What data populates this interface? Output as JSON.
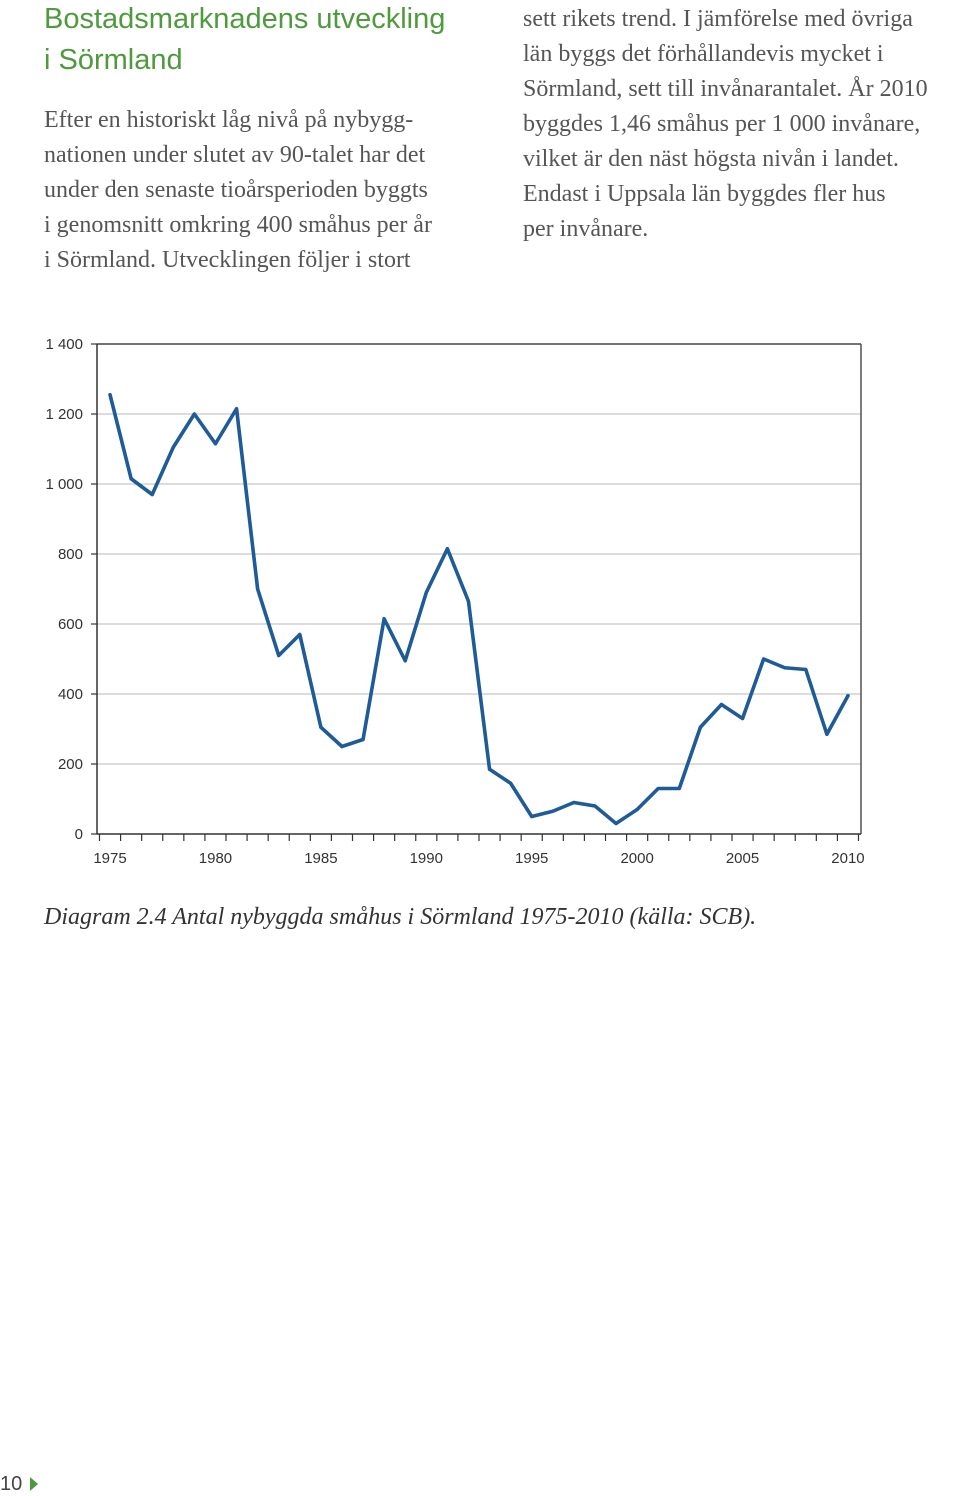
{
  "heading": {
    "lines": [
      "Bostadsmarknadens utveckling",
      "i Sörmland"
    ]
  },
  "body": {
    "left_column": [
      "Efter en historiskt låg nivå på nybygg-",
      "nationen under slutet av 90-talet har det",
      "under den senaste tioårsperioden byggts",
      "i genomsnitt omkring 400 småhus per år",
      "i Sörmland. Utvecklingen följer i stort"
    ],
    "right_column": [
      "sett rikets trend. I jämförelse med övriga",
      "län byggs det förhållandevis mycket i",
      "Sörmland, sett till invånarantalet. År 2010",
      "byggdes 1,46 småhus per 1 000 invånare,",
      "vilket är den näst högsta nivån i landet.",
      "Endast i Uppsala län byggdes fler hus",
      "per invånare."
    ]
  },
  "chart_data": {
    "type": "line",
    "title": "",
    "xlabel": "",
    "ylabel": "",
    "x": [
      1975,
      1976,
      1977,
      1978,
      1979,
      1980,
      1981,
      1982,
      1983,
      1984,
      1985,
      1986,
      1987,
      1988,
      1989,
      1990,
      1991,
      1992,
      1993,
      1994,
      1995,
      1996,
      1997,
      1998,
      1999,
      2000,
      2001,
      2002,
      2003,
      2004,
      2005,
      2006,
      2007,
      2008,
      2009,
      2010
    ],
    "series": [
      {
        "values": [
          1255,
          1015,
          970,
          1105,
          1200,
          1115,
          1215,
          700,
          510,
          570,
          305,
          250,
          270,
          615,
          495,
          690,
          815,
          665,
          185,
          145,
          50,
          65,
          90,
          80,
          30,
          70,
          130,
          130,
          305,
          370,
          330,
          500,
          475,
          470,
          285,
          395
        ],
        "color": "#1f5b96"
      }
    ],
    "xticks": [
      1975,
      1980,
      1985,
      1990,
      1995,
      2000,
      2005,
      2010
    ],
    "xtick_labels": [
      "1975",
      "1980",
      "1985",
      "1990",
      "1995",
      "2000",
      "2005",
      "2010"
    ],
    "yticks": [
      0,
      200,
      400,
      600,
      800,
      1000,
      1200,
      1400
    ],
    "ytick_labels": [
      "0",
      "200",
      "400",
      "600",
      "800",
      "1 000",
      "1 200",
      "1 400"
    ],
    "ylim": [
      0,
      1400
    ],
    "grid": true,
    "legend": "none"
  },
  "caption": "Diagram 2.4 Antal nybyggda småhus i Sörmland 1975-2010 (källa: SCB).",
  "footer": {
    "page_number": "10",
    "arrow_icon": "triangle-right-icon"
  },
  "colors": {
    "heading": "#4e9a3d",
    "body_text": "#555555",
    "accent": "#4e9a3d"
  }
}
